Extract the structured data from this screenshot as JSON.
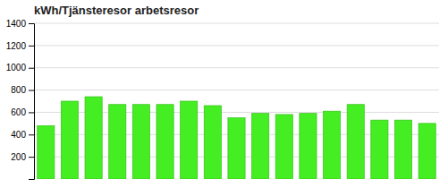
{
  "chart_data": {
    "type": "bar",
    "title": "kWh/Tjänsteresor arbetsresor",
    "categories": [
      null,
      null,
      null,
      null,
      null,
      null,
      null,
      null,
      null,
      null,
      null,
      null,
      null,
      null,
      null,
      null,
      null
    ],
    "values": [
      480,
      700,
      740,
      670,
      670,
      670,
      700,
      660,
      550,
      590,
      580,
      590,
      610,
      670,
      530,
      530,
      500
    ],
    "color": "#44ee22",
    "ylim": [
      0,
      1400
    ],
    "yticks": [
      200,
      400,
      600,
      800,
      1000,
      1200,
      1400
    ],
    "grid": true,
    "tick_labels": "y"
  }
}
